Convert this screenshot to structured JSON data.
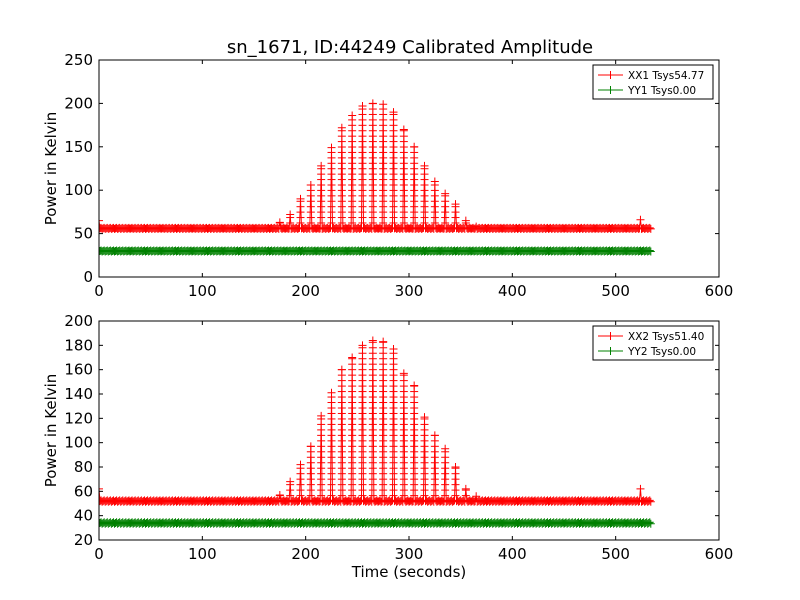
{
  "figure": {
    "title": "sn_1671, ID:44249 Calibrated Amplitude"
  },
  "chart_data": [
    {
      "type": "line",
      "xlabel": "",
      "ylabel": "Power in Kelvin",
      "xlim": [
        0,
        600
      ],
      "ylim": [
        0,
        250
      ],
      "xticks": [
        0,
        100,
        200,
        300,
        400,
        500,
        600
      ],
      "yticks": [
        0,
        50,
        100,
        150,
        200,
        250
      ],
      "grid": false,
      "legend": "top-right",
      "series": [
        {
          "name": "XX1 Tsys54.77",
          "color": "#ff0000",
          "marker": "plus",
          "baseline": 56,
          "x_start": 0,
          "x_end": 534,
          "step": 1,
          "pulses": {
            "x": [
              175,
              185,
              195,
              205,
              215,
              225,
              235,
              245,
              255,
              265,
              275,
              285,
              295,
              305,
              315,
              325,
              335,
              345,
              355,
              365
            ],
            "peak": [
              63,
              72,
              90,
              106,
              128,
              149,
              172,
              186,
              197,
              200,
              199,
              190,
              170,
              150,
              128,
              110,
              96,
              84,
              65,
              58
            ]
          },
          "spikes": [
            {
              "x": 0,
              "y": 65
            },
            {
              "x": 524,
              "y": 66
            }
          ]
        },
        {
          "name": "YY1 Tsys0.00",
          "color": "#008000",
          "marker": "plus",
          "baseline": 30,
          "x_start": 0,
          "x_end": 534,
          "step": 1,
          "pulses": {
            "x": [],
            "peak": []
          },
          "spikes": []
        }
      ]
    },
    {
      "type": "line",
      "xlabel": "Time (seconds)",
      "ylabel": "Power in Kelvin",
      "xlim": [
        0,
        600
      ],
      "ylim": [
        20,
        200
      ],
      "xticks": [
        0,
        100,
        200,
        300,
        400,
        500,
        600
      ],
      "yticks": [
        20,
        40,
        60,
        80,
        100,
        120,
        140,
        160,
        180,
        200
      ],
      "grid": false,
      "legend": "top-right",
      "series": [
        {
          "name": "XX2 Tsys51.40",
          "color": "#ff0000",
          "marker": "plus",
          "baseline": 52,
          "x_start": 0,
          "x_end": 534,
          "step": 1,
          "pulses": {
            "x": [
              175,
              185,
              195,
              205,
              215,
              225,
              235,
              245,
              255,
              265,
              275,
              285,
              295,
              305,
              315,
              325,
              335,
              345,
              355,
              365
            ],
            "peak": [
              57,
              68,
              82,
              97,
              122,
              141,
              160,
              170,
              180,
              184,
              183,
              177,
              157,
              147,
              121,
              106,
              95,
              80,
              62,
              56
            ]
          },
          "spikes": [
            {
              "x": 0,
              "y": 62
            },
            {
              "x": 524,
              "y": 62
            }
          ]
        },
        {
          "name": "YY2 Tsys0.00",
          "color": "#008000",
          "marker": "plus",
          "baseline": 34,
          "x_start": 0,
          "x_end": 534,
          "step": 1,
          "pulses": {
            "x": [],
            "peak": []
          },
          "spikes": []
        }
      ]
    }
  ]
}
